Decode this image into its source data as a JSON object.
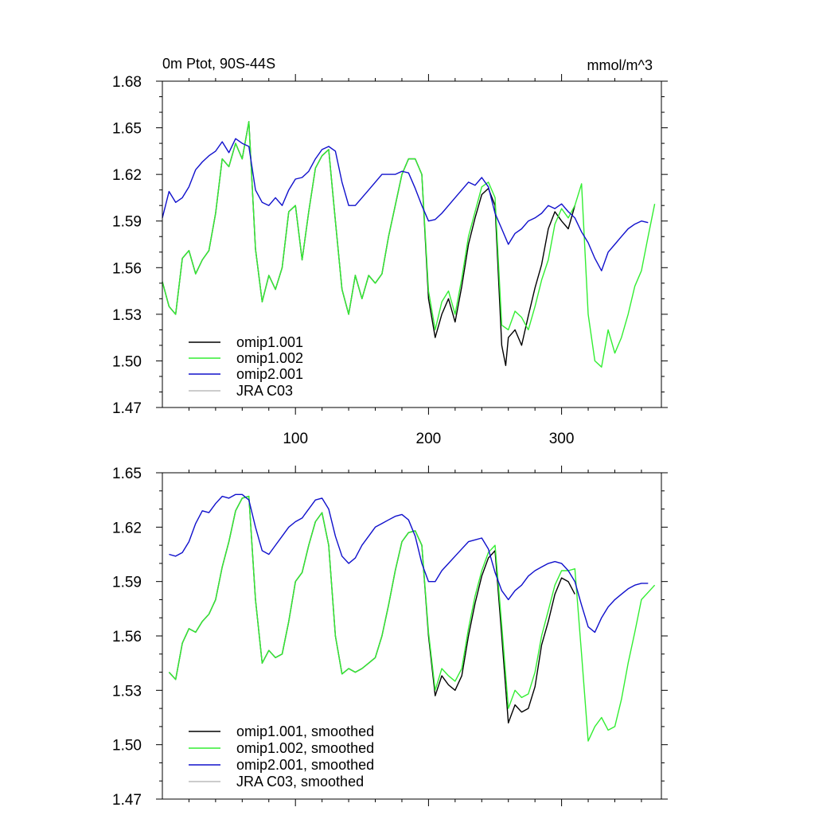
{
  "chart_data": [
    {
      "type": "line",
      "title_left": "0m Ptot, 90S-44S",
      "title_right": "mmol/m^3",
      "xlabel": "",
      "ylabel": "",
      "xlim": [
        0,
        375
      ],
      "ylim": [
        1.47,
        1.68
      ],
      "yticks": [
        "1.47",
        "1.50",
        "1.53",
        "1.56",
        "1.59",
        "1.62",
        "1.65",
        "1.68"
      ],
      "xticks": [
        "100",
        "200",
        "300"
      ],
      "xtick_values": [
        100,
        200,
        300
      ],
      "legend_position": "bottom-left",
      "grid": false,
      "series": [
        {
          "name": "omip1.001",
          "color": "#000000",
          "x": [
            0,
            5,
            10,
            15,
            20,
            25,
            30,
            35,
            40,
            45,
            50,
            55,
            60,
            65,
            70,
            75,
            80,
            85,
            90,
            95,
            100,
            105,
            110,
            115,
            120,
            125,
            130,
            135,
            140,
            145,
            150,
            155,
            160,
            165,
            170,
            175,
            180,
            185,
            190,
            195,
            200,
            205,
            210,
            215,
            220,
            225,
            230,
            235,
            240,
            245,
            250,
            255,
            258,
            260,
            265,
            270,
            275,
            280,
            285,
            290,
            295,
            300,
            305,
            310
          ],
          "values": [
            1.551,
            1.535,
            1.53,
            1.566,
            1.571,
            1.556,
            1.565,
            1.571,
            1.595,
            1.63,
            1.625,
            1.64,
            1.63,
            1.654,
            1.572,
            1.538,
            1.555,
            1.546,
            1.56,
            1.596,
            1.6,
            1.565,
            1.596,
            1.624,
            1.632,
            1.636,
            1.59,
            1.546,
            1.53,
            1.555,
            1.54,
            1.555,
            1.55,
            1.556,
            1.58,
            1.6,
            1.62,
            1.63,
            1.63,
            1.62,
            1.54,
            1.515,
            1.53,
            1.54,
            1.525,
            1.548,
            1.575,
            1.592,
            1.607,
            1.611,
            1.6,
            1.51,
            1.497,
            1.515,
            1.52,
            1.51,
            1.529,
            1.547,
            1.562,
            1.585,
            1.596,
            1.59,
            1.585,
            1.6
          ]
        },
        {
          "name": "omip1.002",
          "color": "#33ee33",
          "x": [
            0,
            5,
            10,
            15,
            20,
            25,
            30,
            35,
            40,
            45,
            50,
            55,
            60,
            65,
            70,
            75,
            80,
            85,
            90,
            95,
            100,
            105,
            110,
            115,
            120,
            125,
            130,
            135,
            140,
            145,
            150,
            155,
            160,
            165,
            170,
            175,
            180,
            185,
            190,
            195,
            200,
            205,
            210,
            215,
            220,
            225,
            230,
            235,
            240,
            245,
            250,
            255,
            260,
            265,
            270,
            275,
            280,
            285,
            290,
            295,
            300,
            305,
            310,
            315,
            320,
            325,
            330,
            335,
            340,
            345,
            350,
            355,
            360,
            365,
            370
          ],
          "values": [
            1.551,
            1.535,
            1.53,
            1.566,
            1.571,
            1.556,
            1.565,
            1.571,
            1.595,
            1.63,
            1.625,
            1.64,
            1.63,
            1.654,
            1.572,
            1.538,
            1.555,
            1.546,
            1.56,
            1.596,
            1.6,
            1.565,
            1.596,
            1.624,
            1.632,
            1.636,
            1.59,
            1.546,
            1.53,
            1.555,
            1.54,
            1.555,
            1.55,
            1.556,
            1.58,
            1.6,
            1.62,
            1.63,
            1.63,
            1.62,
            1.545,
            1.52,
            1.538,
            1.545,
            1.53,
            1.553,
            1.58,
            1.596,
            1.612,
            1.615,
            1.605,
            1.523,
            1.52,
            1.532,
            1.528,
            1.52,
            1.535,
            1.552,
            1.565,
            1.588,
            1.598,
            1.592,
            1.6,
            1.614,
            1.53,
            1.5,
            1.496,
            1.52,
            1.505,
            1.515,
            1.53,
            1.548,
            1.558,
            1.58,
            1.601
          ]
        },
        {
          "name": "omip2.001",
          "color": "#1010cc",
          "x": [
            0,
            5,
            10,
            15,
            20,
            25,
            30,
            35,
            40,
            45,
            50,
            55,
            60,
            65,
            70,
            75,
            80,
            85,
            90,
            95,
            100,
            105,
            110,
            115,
            120,
            125,
            130,
            135,
            140,
            145,
            150,
            155,
            160,
            165,
            170,
            175,
            180,
            185,
            190,
            195,
            200,
            205,
            210,
            215,
            220,
            225,
            230,
            235,
            240,
            245,
            250,
            255,
            260,
            265,
            270,
            275,
            280,
            285,
            290,
            295,
            300,
            305,
            310,
            315,
            320,
            325,
            330,
            335,
            340,
            345,
            350,
            355,
            360,
            365
          ],
          "values": [
            1.592,
            1.609,
            1.602,
            1.605,
            1.612,
            1.623,
            1.628,
            1.632,
            1.635,
            1.641,
            1.634,
            1.643,
            1.64,
            1.638,
            1.61,
            1.602,
            1.6,
            1.605,
            1.6,
            1.61,
            1.617,
            1.618,
            1.622,
            1.63,
            1.636,
            1.638,
            1.635,
            1.615,
            1.6,
            1.6,
            1.605,
            1.61,
            1.615,
            1.62,
            1.62,
            1.62,
            1.622,
            1.621,
            1.611,
            1.6,
            1.59,
            1.591,
            1.595,
            1.6,
            1.605,
            1.61,
            1.615,
            1.613,
            1.618,
            1.612,
            1.595,
            1.585,
            1.575,
            1.582,
            1.585,
            1.59,
            1.592,
            1.595,
            1.6,
            1.598,
            1.601,
            1.596,
            1.592,
            1.583,
            1.576,
            1.566,
            1.558,
            1.57,
            1.575,
            1.58,
            1.585,
            1.588,
            1.59,
            1.589
          ]
        },
        {
          "name": "JRA C03",
          "color": "#bbbbbb",
          "x": [],
          "values": []
        }
      ]
    },
    {
      "type": "line",
      "xlim": [
        0,
        375
      ],
      "ylim": [
        1.47,
        1.65
      ],
      "yticks": [
        "1.47",
        "1.50",
        "1.53",
        "1.56",
        "1.59",
        "1.62",
        "1.65"
      ],
      "xtick_values": [
        100,
        200,
        300
      ],
      "legend_position": "bottom-left",
      "grid": false,
      "series": [
        {
          "name": "omip1.001, smoothed",
          "color": "#000000",
          "x": [
            5,
            10,
            15,
            20,
            25,
            30,
            35,
            40,
            45,
            50,
            55,
            60,
            65,
            70,
            75,
            80,
            85,
            90,
            95,
            100,
            105,
            110,
            115,
            120,
            125,
            130,
            135,
            140,
            145,
            150,
            155,
            160,
            165,
            170,
            175,
            180,
            185,
            190,
            195,
            200,
            205,
            210,
            215,
            220,
            225,
            230,
            235,
            240,
            245,
            250,
            255,
            260,
            265,
            270,
            275,
            280,
            285,
            290,
            295,
            300,
            305,
            310
          ],
          "values": [
            1.54,
            1.536,
            1.556,
            1.564,
            1.562,
            1.568,
            1.572,
            1.58,
            1.598,
            1.612,
            1.629,
            1.636,
            1.637,
            1.58,
            1.545,
            1.552,
            1.548,
            1.55,
            1.568,
            1.59,
            1.595,
            1.61,
            1.623,
            1.628,
            1.61,
            1.56,
            1.539,
            1.542,
            1.54,
            1.542,
            1.545,
            1.548,
            1.56,
            1.577,
            1.596,
            1.612,
            1.617,
            1.618,
            1.61,
            1.56,
            1.527,
            1.538,
            1.533,
            1.53,
            1.538,
            1.56,
            1.578,
            1.593,
            1.603,
            1.607,
            1.56,
            1.512,
            1.522,
            1.518,
            1.52,
            1.532,
            1.555,
            1.568,
            1.583,
            1.592,
            1.59,
            1.583
          ]
        },
        {
          "name": "omip1.002, smoothed",
          "color": "#33ee33",
          "x": [
            5,
            10,
            15,
            20,
            25,
            30,
            35,
            40,
            45,
            50,
            55,
            60,
            65,
            70,
            75,
            80,
            85,
            90,
            95,
            100,
            105,
            110,
            115,
            120,
            125,
            130,
            135,
            140,
            145,
            150,
            155,
            160,
            165,
            170,
            175,
            180,
            185,
            190,
            195,
            200,
            205,
            210,
            215,
            220,
            225,
            230,
            235,
            240,
            245,
            250,
            255,
            260,
            265,
            270,
            275,
            280,
            285,
            290,
            295,
            300,
            305,
            310,
            315,
            320,
            325,
            330,
            335,
            340,
            345,
            350,
            355,
            360,
            365,
            370
          ],
          "values": [
            1.54,
            1.536,
            1.556,
            1.564,
            1.562,
            1.568,
            1.572,
            1.58,
            1.598,
            1.612,
            1.629,
            1.636,
            1.637,
            1.58,
            1.545,
            1.552,
            1.548,
            1.55,
            1.568,
            1.59,
            1.595,
            1.61,
            1.623,
            1.628,
            1.61,
            1.56,
            1.539,
            1.542,
            1.54,
            1.542,
            1.545,
            1.548,
            1.56,
            1.577,
            1.596,
            1.612,
            1.617,
            1.618,
            1.61,
            1.562,
            1.53,
            1.542,
            1.538,
            1.535,
            1.542,
            1.564,
            1.582,
            1.596,
            1.606,
            1.61,
            1.566,
            1.52,
            1.53,
            1.526,
            1.528,
            1.54,
            1.56,
            1.574,
            1.588,
            1.596,
            1.596,
            1.597,
            1.55,
            1.502,
            1.51,
            1.515,
            1.508,
            1.51,
            1.525,
            1.545,
            1.562,
            1.58,
            1.584,
            1.588
          ]
        },
        {
          "name": "omip2.001, smoothed",
          "color": "#1010cc",
          "x": [
            5,
            10,
            15,
            20,
            25,
            30,
            35,
            40,
            45,
            50,
            55,
            60,
            65,
            70,
            75,
            80,
            85,
            90,
            95,
            100,
            105,
            110,
            115,
            120,
            125,
            130,
            135,
            140,
            145,
            150,
            155,
            160,
            165,
            170,
            175,
            180,
            185,
            190,
            195,
            200,
            205,
            210,
            215,
            220,
            225,
            230,
            235,
            240,
            245,
            250,
            255,
            260,
            265,
            270,
            275,
            280,
            285,
            290,
            295,
            300,
            305,
            310,
            315,
            320,
            325,
            330,
            335,
            340,
            345,
            350,
            355,
            360,
            365
          ],
          "values": [
            1.605,
            1.604,
            1.606,
            1.612,
            1.622,
            1.629,
            1.628,
            1.633,
            1.637,
            1.636,
            1.638,
            1.638,
            1.635,
            1.62,
            1.607,
            1.605,
            1.61,
            1.615,
            1.62,
            1.623,
            1.625,
            1.63,
            1.635,
            1.636,
            1.63,
            1.615,
            1.604,
            1.6,
            1.603,
            1.61,
            1.615,
            1.62,
            1.622,
            1.624,
            1.626,
            1.627,
            1.624,
            1.615,
            1.6,
            1.59,
            1.59,
            1.596,
            1.6,
            1.604,
            1.608,
            1.612,
            1.613,
            1.614,
            1.608,
            1.595,
            1.585,
            1.58,
            1.585,
            1.588,
            1.593,
            1.596,
            1.598,
            1.6,
            1.601,
            1.6,
            1.596,
            1.59,
            1.577,
            1.565,
            1.562,
            1.57,
            1.576,
            1.58,
            1.583,
            1.586,
            1.588,
            1.589,
            1.589
          ]
        },
        {
          "name": "JRA C03, smoothed",
          "color": "#bbbbbb",
          "x": [],
          "values": []
        }
      ]
    }
  ]
}
